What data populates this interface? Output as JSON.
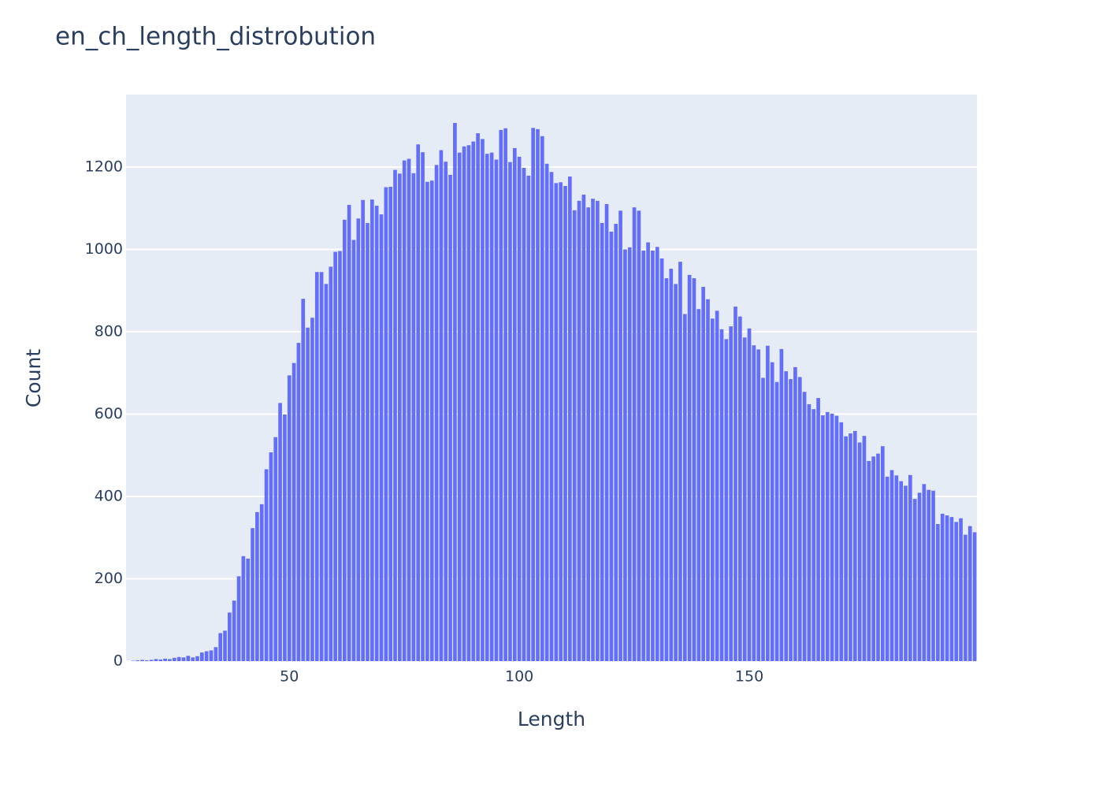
{
  "chart_data": {
    "type": "bar",
    "title": "en_ch_length_distrobution",
    "x_label": "Length",
    "y_label": "Count",
    "color": "#636efa",
    "grid": true,
    "x": [
      15,
      16,
      17,
      18,
      19,
      20,
      21,
      22,
      23,
      24,
      25,
      26,
      27,
      28,
      29,
      30,
      31,
      32,
      33,
      34,
      35,
      36,
      37,
      38,
      39,
      40,
      41,
      42,
      43,
      44,
      45,
      46,
      47,
      48,
      49,
      50,
      51,
      52,
      53,
      54,
      55,
      56,
      57,
      58,
      59,
      60,
      61,
      62,
      63,
      64,
      65,
      66,
      67,
      68,
      69,
      70,
      71,
      72,
      73,
      74,
      75,
      76,
      77,
      78,
      79,
      80,
      81,
      82,
      83,
      84,
      85,
      86,
      87,
      88,
      89,
      90,
      91,
      92,
      93,
      94,
      95,
      96,
      97,
      98,
      99,
      100,
      101,
      102,
      103,
      104,
      105,
      106,
      107,
      108,
      109,
      110,
      111,
      112,
      113,
      114,
      115,
      116,
      117,
      118,
      119,
      120,
      121,
      122,
      123,
      124,
      125,
      126,
      127,
      128,
      129,
      130,
      131,
      132,
      133,
      134,
      135,
      136,
      137,
      138,
      139,
      140,
      141,
      142,
      143,
      144,
      145,
      146,
      147,
      148,
      149,
      150,
      151,
      152,
      153,
      154,
      155,
      156,
      157,
      158,
      159,
      160,
      161,
      162,
      163,
      164,
      165,
      166,
      167,
      168,
      169,
      170,
      171,
      172,
      173,
      174,
      175,
      176,
      177,
      178,
      179,
      180,
      181,
      182,
      183,
      184,
      185,
      186,
      187,
      188,
      189,
      190,
      191,
      192,
      193,
      194,
      195,
      196,
      197,
      198,
      199
    ],
    "values": [
      0,
      1,
      2,
      3,
      2,
      3,
      5,
      4,
      6,
      5,
      8,
      10,
      9,
      13,
      9,
      12,
      21,
      24,
      26,
      34,
      68,
      74,
      118,
      147,
      206,
      255,
      249,
      323,
      362,
      381,
      466,
      507,
      544,
      627,
      599,
      694,
      724,
      773,
      880,
      810,
      834,
      945,
      945,
      916,
      958,
      994,
      996,
      1072,
      1108,
      1023,
      1075,
      1120,
      1064,
      1121,
      1106,
      1085,
      1151,
      1152,
      1193,
      1184,
      1216,
      1220,
      1185,
      1255,
      1236,
      1164,
      1167,
      1205,
      1241,
      1213,
      1181,
      1307,
      1235,
      1250,
      1253,
      1262,
      1282,
      1268,
      1232,
      1235,
      1218,
      1290,
      1294,
      1212,
      1246,
      1225,
      1198,
      1179,
      1295,
      1292,
      1275,
      1208,
      1188,
      1161,
      1163,
      1154,
      1177,
      1095,
      1118,
      1133,
      1102,
      1123,
      1118,
      1064,
      1110,
      1043,
      1062,
      1094,
      1000,
      1005,
      1102,
      1094,
      997,
      1017,
      997,
      1006,
      978,
      930,
      953,
      916,
      970,
      843,
      938,
      930,
      855,
      909,
      879,
      832,
      851,
      806,
      782,
      813,
      861,
      837,
      786,
      808,
      767,
      757,
      688,
      766,
      726,
      678,
      758,
      704,
      685,
      714,
      690,
      654,
      624,
      612,
      639,
      597,
      605,
      601,
      596,
      580,
      546,
      553,
      559,
      531,
      547,
      486,
      497,
      504,
      522,
      448,
      464,
      451,
      437,
      426,
      452,
      394,
      409,
      430,
      416,
      414,
      333,
      358,
      354,
      350,
      338,
      347,
      307,
      328,
      313
    ],
    "xlim": [
      14.5,
      199.5
    ],
    "xticks": [
      50,
      100,
      150
    ],
    "ylim": [
      0,
      1376
    ],
    "yticks": [
      0,
      200,
      400,
      600,
      800,
      1000,
      1200
    ]
  }
}
